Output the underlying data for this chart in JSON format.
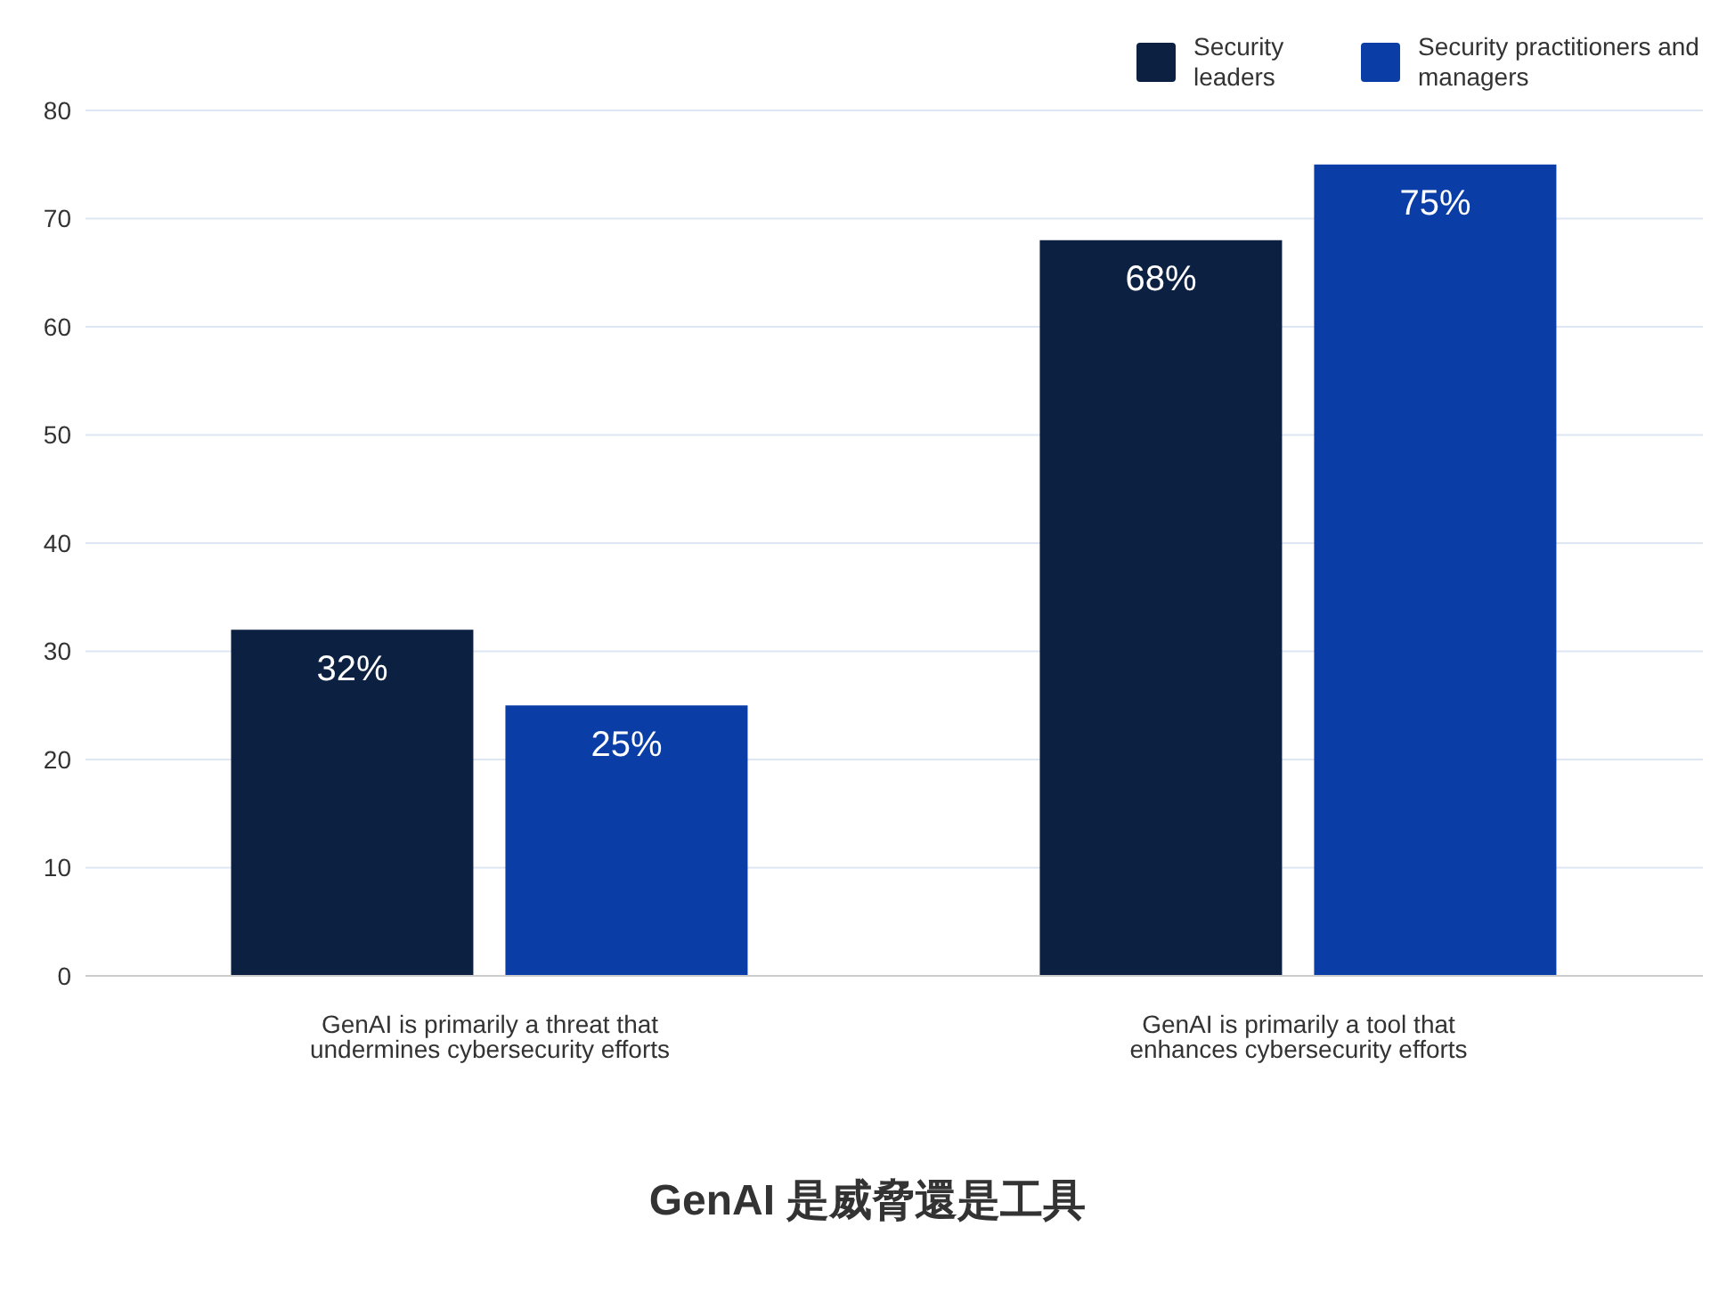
{
  "chart_data": {
    "type": "bar",
    "categories": [
      "GenAI is primarily a threat that undermines cybersecurity efforts",
      "GenAI is primarily a tool that enhances cybersecurity efforts"
    ],
    "series": [
      {
        "name": "Security leaders",
        "color": "#0c2142",
        "values": [
          32,
          68
        ],
        "value_labels": [
          "32%",
          "68%"
        ]
      },
      {
        "name": "Security practitioners and managers",
        "color": "#0a3ea6",
        "values": [
          25,
          75
        ],
        "value_labels": [
          "25%",
          "75%"
        ]
      }
    ],
    "ylim": [
      0,
      80
    ],
    "yticks": [
      0,
      10,
      20,
      30,
      40,
      50,
      60,
      70,
      80
    ],
    "grid": "y",
    "legend": "top right",
    "annotations": [
      "GenAI 是威脅還是工具"
    ]
  }
}
